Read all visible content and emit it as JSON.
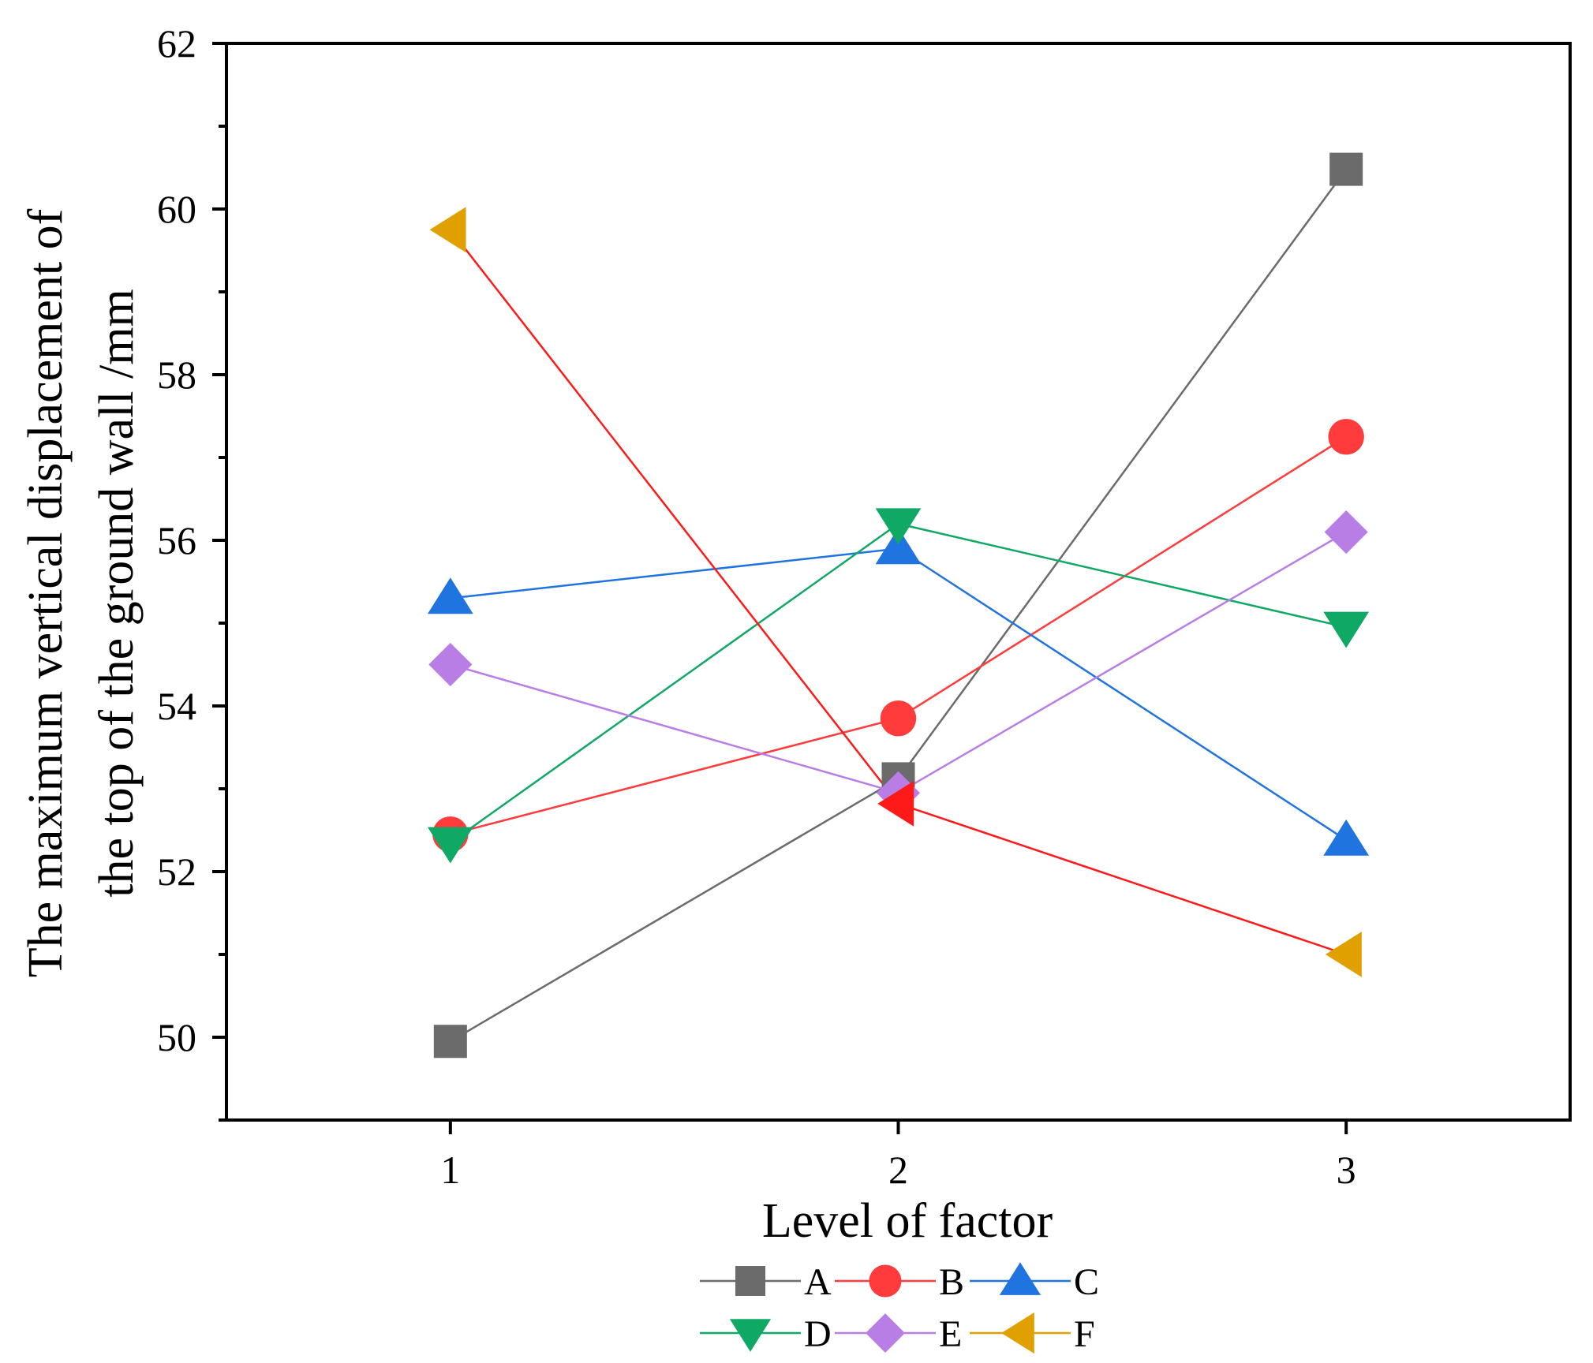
{
  "chart_data": {
    "type": "line",
    "title": "",
    "xlabel": "Level of factor",
    "ylabel": [
      "The maximum vertical displacement of",
      "the top of the ground wall /mm"
    ],
    "categories": [
      "1",
      "2",
      "3"
    ],
    "x": [
      1,
      2,
      3
    ],
    "xlim": [
      0.5,
      3.5
    ],
    "ylim": [
      49,
      62
    ],
    "yticks": [
      50,
      52,
      54,
      56,
      58,
      60,
      62
    ],
    "ytick_labels": [
      "50",
      "52",
      "54",
      "56",
      "58",
      "60",
      "62"
    ],
    "grid": false,
    "legend_position": "bottom-center",
    "series": [
      {
        "name": "A",
        "values": [
          49.95,
          53.12,
          60.48
        ],
        "color": "#6b6b6b",
        "line_color": "#6b6b6b",
        "marker": "square"
      },
      {
        "name": "B",
        "values": [
          52.45,
          53.85,
          57.25
        ],
        "color": "#ff3b3b",
        "line_color": "#ff3b3b",
        "marker": "circle"
      },
      {
        "name": "C",
        "values": [
          55.3,
          55.9,
          52.38
        ],
        "color": "#1f74e0",
        "line_color": "#1f74e0",
        "marker": "triangle-up"
      },
      {
        "name": "D",
        "values": [
          52.35,
          56.2,
          54.95
        ],
        "color": "#10a865",
        "line_color": "#10a865",
        "marker": "triangle-down"
      },
      {
        "name": "E",
        "values": [
          54.5,
          52.95,
          56.1
        ],
        "color": "#b97ee6",
        "line_color": "#b97ee6",
        "marker": "diamond"
      },
      {
        "name": "F",
        "values": [
          59.75,
          52.82,
          51.0
        ],
        "color": "#e0a100",
        "line_color": "#ff1a1a",
        "marker": "triangle-left",
        "marker_overrides": [
          {
            "index": 1,
            "color": "#ff1a1a"
          }
        ]
      }
    ]
  }
}
